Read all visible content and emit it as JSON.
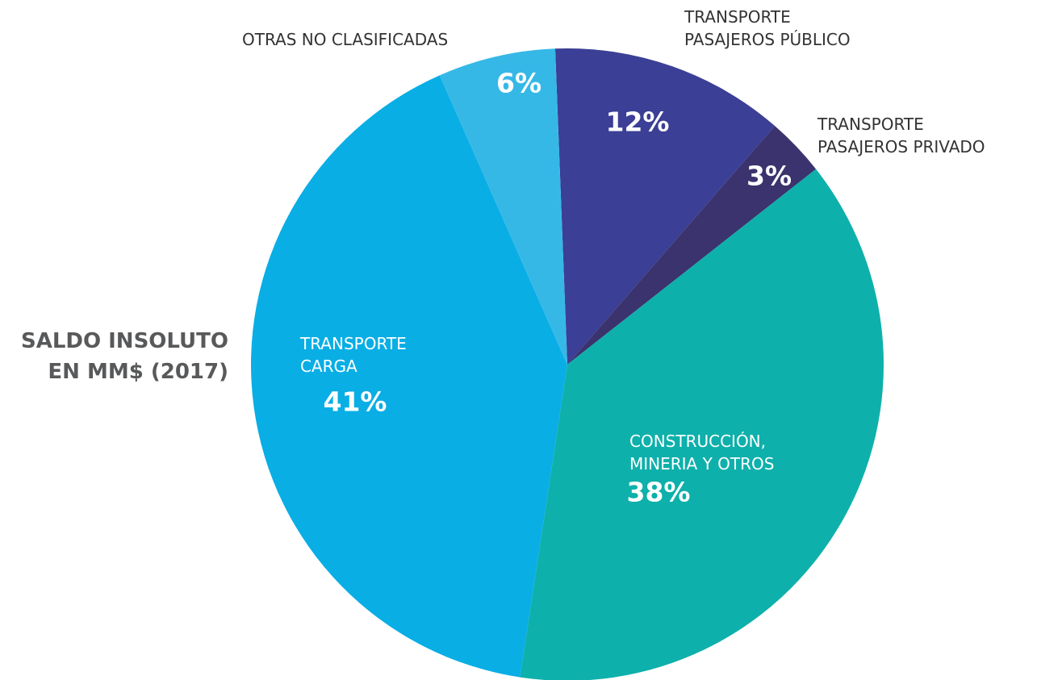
{
  "chart_data": {
    "type": "pie",
    "title": "SALDO INSOLUTO EN MM$ (2017)",
    "categories": [
      "TRANSPORTE PASAJEROS PÚBLICO",
      "TRANSPORTE PASAJEROS PRIVADO",
      "CONSTRUCCIÓN, MINERIA Y OTROS",
      "TRANSPORTE CARGA",
      "OTRAS NO CLASIFICADAS"
    ],
    "values": [
      12,
      3,
      38,
      41,
      6
    ],
    "value_labels": [
      "12%",
      "3%",
      "38%",
      "41%",
      "6%"
    ],
    "colors": [
      "#3b3f95",
      "#3a336d",
      "#0eb0ab",
      "#09aee5",
      "#36b8e7"
    ]
  }
}
